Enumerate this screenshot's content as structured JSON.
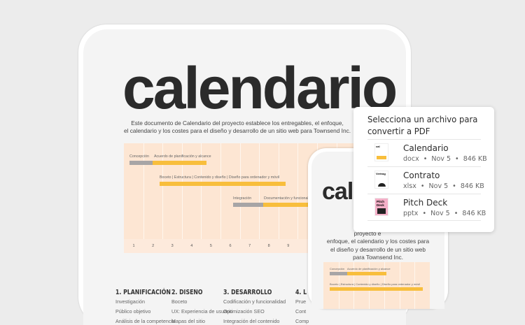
{
  "document": {
    "title": "calendario",
    "description_l1": "Este documento de Calendario del proyecto establece los entregables, el enfoque,",
    "description_l2": "el calendario y los costes para el diseño y desarrollo de un sitio web para Townsend Inc.",
    "gantt": {
      "row1_a": "Concepción",
      "row1_b": "Acuerdo de planificación y alcance",
      "row2": "Boceto | Estructura | Contenido y diseño | Diseño para ordenador y móvil",
      "row3_a": "Integración",
      "row3_b": "Documentación y funcionalidad",
      "weeks": [
        "1",
        "2",
        "3",
        "4",
        "5",
        "6",
        "7",
        "8",
        "9"
      ],
      "colors": {
        "gray": "#a7a5a6",
        "yellow": "#f8be3c",
        "bg": "#fde6d3"
      }
    },
    "sections": [
      {
        "heading": "1. PLANIFICACIÓN",
        "items": [
          "Investigación",
          "Público objetivo",
          "Análisis de la competencia"
        ]
      },
      {
        "heading": "2. DISEÑO",
        "items": [
          "Boceto",
          "UX: Experiencia de usuario",
          "Mapas del sitio"
        ]
      },
      {
        "heading": "3. DESARROLLO",
        "items": [
          "Codificación y funcionalidad",
          "Optimización SEO",
          "Integración del contenido"
        ]
      },
      {
        "heading": "4. L",
        "items": [
          "Prue",
          "Cont",
          "Comp"
        ]
      }
    ]
  },
  "phone": {
    "title": "cal",
    "desc": [
      "Este do",
      "proyecto e",
      "enfoque, el calendario y los costes para",
      "el diseño y desarrollo de un sitio web",
      "para Townsend Inc."
    ]
  },
  "popup": {
    "title_l1": "Selecciona un archivo para",
    "title_l2": "convertir a PDF",
    "files": [
      {
        "name": "Calendario",
        "type": "docx",
        "date": "Nov 5",
        "size": "846 KB",
        "thumb": "document-thumbnail"
      },
      {
        "name": "Contrato",
        "type": "xlsx",
        "date": "Nov 5",
        "size": "846 KB",
        "thumb": "spreadsheet-thumbnail"
      },
      {
        "name": "Pitch Deck",
        "type": "pptx",
        "date": "Nov 5",
        "size": "846 KB",
        "thumb": "presentation-thumbnail"
      }
    ]
  }
}
